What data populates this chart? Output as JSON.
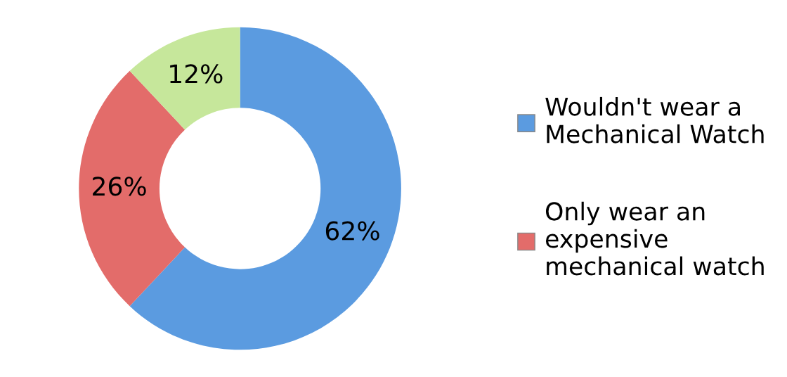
{
  "chart_data": {
    "type": "donut",
    "categories": [
      "Wouldn't wear a Mechanical Watch",
      "Only wear an expensive mechanical watch",
      null
    ],
    "values": [
      62,
      26,
      12
    ],
    "colors": [
      "#5b9be0",
      "#e36c6a",
      "#c6e79b"
    ],
    "value_labels": [
      "62%",
      "26%",
      "12%"
    ],
    "legend": "right"
  }
}
